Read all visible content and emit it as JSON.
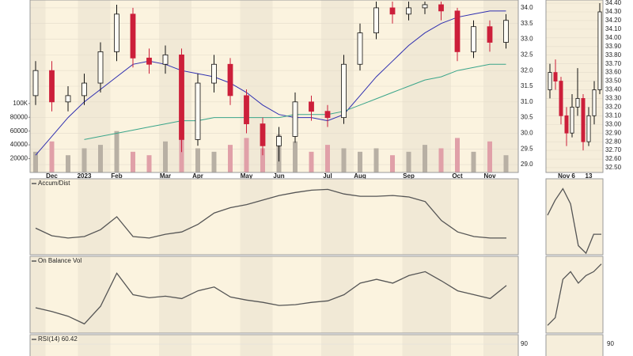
{
  "chart_data": [
    {
      "type": "candlestick",
      "categories": [
        null,
        "Dec",
        null,
        "2023",
        null,
        "Feb",
        null,
        null,
        "Mar",
        null,
        "Apr",
        null,
        null,
        "May",
        null,
        "Jun",
        null,
        null,
        "Jul",
        null,
        "Aug",
        null,
        null,
        "Sep",
        null,
        null,
        "Oct",
        null,
        "Nov",
        null
      ],
      "open": [
        31.2,
        32.0,
        31.0,
        31.2,
        31.6,
        32.6,
        33.8,
        32.4,
        32.2,
        32.5,
        29.8,
        31.6,
        32.2,
        31.2,
        30.3,
        29.6,
        29.9,
        31.0,
        30.7,
        30.5,
        32.2,
        33.2,
        34.0,
        33.8,
        34.0,
        34.1,
        33.9,
        32.6,
        33.4,
        32.9
      ],
      "high": [
        32.3,
        32.3,
        31.5,
        31.9,
        32.9,
        34.1,
        34.0,
        32.7,
        32.8,
        32.7,
        31.9,
        32.5,
        32.4,
        31.4,
        30.5,
        30.2,
        31.3,
        31.2,
        30.9,
        32.5,
        33.5,
        34.2,
        34.2,
        34.2,
        34.2,
        34.2,
        34.0,
        33.6,
        33.6,
        33.8
      ],
      "low": [
        30.9,
        30.7,
        30.7,
        30.9,
        31.3,
        32.3,
        32.1,
        31.9,
        31.9,
        29.4,
        29.6,
        31.3,
        30.9,
        30.0,
        29.3,
        29.1,
        29.7,
        30.4,
        30.2,
        30.3,
        32.0,
        33.0,
        33.5,
        33.6,
        33.8,
        33.6,
        32.3,
        32.4,
        32.6,
        32.7
      ],
      "close": [
        32.0,
        31.0,
        31.2,
        31.6,
        32.6,
        33.8,
        32.4,
        32.2,
        32.5,
        29.8,
        31.6,
        32.2,
        31.2,
        30.3,
        29.6,
        29.9,
        31.0,
        30.7,
        30.5,
        32.2,
        33.2,
        34.0,
        33.8,
        34.0,
        34.1,
        33.9,
        32.6,
        33.4,
        32.9,
        33.6
      ],
      "up_color": "#111111",
      "down_color": "#cc1f3a",
      "overlays": [
        {
          "color": "#2f2fb0",
          "values": [
            29.3,
            29.9,
            30.5,
            31.0,
            31.4,
            31.8,
            32.2,
            32.3,
            32.2,
            32.0,
            31.9,
            31.8,
            31.6,
            31.3,
            30.9,
            30.6,
            30.5,
            30.5,
            30.4,
            30.6,
            31.2,
            31.8,
            32.3,
            32.8,
            33.2,
            33.5,
            33.7,
            33.8,
            33.9,
            33.9
          ]
        },
        {
          "color": "#3aa58a",
          "values": [
            null,
            null,
            null,
            29.8,
            29.9,
            30.0,
            30.1,
            30.2,
            30.3,
            30.4,
            30.4,
            30.5,
            30.5,
            30.5,
            30.5,
            30.5,
            30.6,
            30.6,
            30.6,
            30.7,
            30.9,
            31.1,
            31.3,
            31.5,
            31.7,
            31.8,
            32.0,
            32.1,
            32.2,
            32.2
          ]
        }
      ],
      "ylim": [
        28.75,
        34.25
      ],
      "yticks": [
        {
          "value": 29,
          "label": "29.0"
        },
        29.5,
        {
          "value": 30,
          "label": "30.0"
        },
        30.5,
        {
          "value": 31,
          "label": "31.0"
        },
        31.5,
        {
          "value": 32,
          "label": "32.0"
        },
        32.5,
        {
          "value": 33,
          "label": "33.0"
        },
        33.5,
        {
          "value": 34,
          "label": "34.0"
        }
      ],
      "volume": {
        "values": [
          30000,
          45000,
          25000,
          35000,
          40000,
          60000,
          30000,
          25000,
          45000,
          70000,
          35000,
          30000,
          40000,
          50000,
          35000,
          55000,
          45000,
          30000,
          40000,
          35000,
          30000,
          35000,
          25000,
          30000,
          40000,
          35000,
          50000,
          30000,
          45000,
          25000
        ],
        "color": "#b8b0a4",
        "down_color": "#e0a0a8",
        "ylim": [
          0,
          250000
        ],
        "yticks": [
          20000,
          40000,
          60000,
          80000,
          {
            "value": 100000,
            "label": "100K"
          }
        ]
      }
    },
    {
      "type": "candlestick",
      "categories": [
        null,
        null,
        null,
        "Nov 6",
        null,
        null,
        null,
        "13",
        null,
        null
      ],
      "open": [
        33.4,
        33.6,
        33.5,
        33.1,
        32.9,
        33.2,
        33.3,
        32.8,
        33.1,
        33.4
      ],
      "high": [
        33.7,
        33.75,
        33.55,
        33.2,
        33.35,
        33.65,
        33.35,
        33.2,
        33.5,
        34.4
      ],
      "low": [
        33.3,
        33.4,
        33.0,
        32.75,
        32.85,
        33.1,
        32.7,
        32.75,
        33.0,
        33.35
      ],
      "close": [
        33.6,
        33.5,
        33.1,
        32.9,
        33.2,
        33.3,
        32.8,
        33.1,
        33.4,
        34.3
      ],
      "up_color": "#111111",
      "down_color": "#cc1f3a",
      "ylim": [
        32.445,
        34.437
      ],
      "yticks": [
        {
          "value": 32.5,
          "label": "32.50"
        },
        {
          "value": 32.6,
          "label": "32.60"
        },
        {
          "value": 32.7,
          "label": "32.70"
        },
        {
          "value": 32.8,
          "label": "32.80"
        },
        {
          "value": 32.9,
          "label": "32.90"
        },
        {
          "value": 33.0,
          "label": "33.00"
        },
        {
          "value": 33.1,
          "label": "33.10"
        },
        {
          "value": 33.2,
          "label": "33.20"
        },
        {
          "value": 33.3,
          "label": "33.30"
        },
        {
          "value": 33.4,
          "label": "33.40"
        },
        {
          "value": 33.5,
          "label": "33.50"
        },
        {
          "value": 33.6,
          "label": "33.60"
        },
        {
          "value": 33.7,
          "label": "33.70"
        },
        {
          "value": 33.8,
          "label": "33.80"
        },
        {
          "value": 33.9,
          "label": "33.90"
        },
        {
          "value": 34.0,
          "label": "34.00"
        },
        {
          "value": 34.1,
          "label": "34.10"
        },
        {
          "value": 34.2,
          "label": "34.20"
        },
        {
          "value": 34.3,
          "label": "34.30"
        },
        {
          "value": 34.4,
          "label": "34.40"
        }
      ]
    },
    {
      "type": "line",
      "title": "Accum/Dist",
      "color": "#555555",
      "ylim": [
        0,
        100
      ],
      "values": [
        35,
        25,
        22,
        24,
        33,
        50,
        24,
        22,
        27,
        30,
        40,
        55,
        62,
        66,
        72,
        78,
        82,
        85,
        86,
        80,
        77,
        77,
        78,
        76,
        70,
        45,
        30,
        24,
        22,
        22
      ],
      "inset_values": [
        52,
        72,
        87,
        67,
        12,
        2,
        27,
        27
      ]
    },
    {
      "type": "line",
      "title": "On Balance Vol",
      "color": "#555555",
      "ylim": [
        0,
        100
      ],
      "values": [
        33,
        28,
        22,
        12,
        35,
        78,
        50,
        46,
        48,
        45,
        55,
        60,
        47,
        43,
        40,
        36,
        37,
        40,
        42,
        50,
        65,
        70,
        65,
        75,
        80,
        68,
        55,
        50,
        45,
        62
      ],
      "inset_values": [
        10,
        20,
        70,
        80,
        65,
        75,
        80,
        90
      ]
    },
    {
      "type": "line",
      "title": "RSI(14) 60.42",
      "color": "#555555",
      "ylim": [
        0,
        100
      ],
      "yticks": [
        90
      ]
    }
  ]
}
